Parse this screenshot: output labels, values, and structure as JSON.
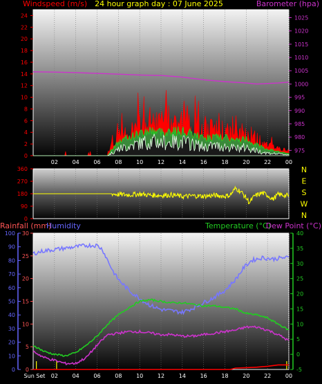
{
  "header": {
    "left_label": "Windspeed (m/s)",
    "title": "24 hour graph day : 07 June 2025",
    "right_label": "Barometer (hpa)"
  },
  "colors": {
    "wind": "#ff0000",
    "barometer": "#cc33cc",
    "title": "#ffff00",
    "gust": "#ff0000",
    "average": "#22cc22",
    "speed": "#e8ffe8",
    "direction": "#ffff00",
    "rain": "#ff0000",
    "humidity": "#7777ff",
    "temperature": "#22cc22",
    "dewpoint": "#cc33cc",
    "rain_axis": "#ff5555",
    "hum_axis": "#6666ff",
    "temp_axis": "#22cc22",
    "dew_axis": "#cc33cc"
  },
  "chart_data": [
    {
      "type": "line",
      "name": "wind-barometer",
      "x_ticks": [
        "02",
        "04",
        "06",
        "08",
        "10",
        "12",
        "14",
        "16",
        "18",
        "20",
        "22",
        "00"
      ],
      "left_axis": {
        "label": "Windspeed (m/s)",
        "ticks": [
          "0",
          "2",
          "4",
          "6",
          "8",
          "10",
          "12",
          "14",
          "16",
          "18",
          "20",
          "22",
          "24"
        ],
        "ylim": [
          0,
          25
        ]
      },
      "right_axis": {
        "label": "Barometer (hpa)",
        "ticks": [
          "975",
          "980",
          "985",
          "990",
          "995",
          "1000",
          "1005",
          "1010",
          "1015",
          "1020",
          "1025"
        ],
        "ylim": [
          973,
          1028
        ]
      },
      "barometer": [
        [
          0,
          1004.6
        ],
        [
          2,
          1004.5
        ],
        [
          4,
          1004.3
        ],
        [
          6,
          1004.0
        ],
        [
          8,
          1003.7
        ],
        [
          10,
          1003.4
        ],
        [
          12,
          1003.2
        ],
        [
          14,
          1002.6
        ],
        [
          16,
          1001.6
        ],
        [
          18,
          1000.9
        ],
        [
          20,
          1000.4
        ],
        [
          21,
          1000.0
        ],
        [
          22,
          1000.2
        ],
        [
          23,
          1000.4
        ],
        [
          24,
          1000.7
        ]
      ],
      "gust_envelope": [
        [
          0,
          0.8
        ],
        [
          6,
          0.8
        ],
        [
          7,
          1.2
        ],
        [
          7.5,
          3
        ],
        [
          8,
          4.5
        ],
        [
          9,
          6
        ],
        [
          10,
          7.5
        ],
        [
          11,
          8.5
        ],
        [
          12,
          8
        ],
        [
          13,
          8.5
        ],
        [
          14,
          8.5
        ],
        [
          15,
          7.5
        ],
        [
          16,
          6
        ],
        [
          17,
          6.5
        ],
        [
          18,
          6
        ],
        [
          19,
          5
        ],
        [
          20,
          6
        ],
        [
          21,
          4
        ],
        [
          22,
          2.5
        ],
        [
          23,
          1.8
        ],
        [
          24,
          1
        ]
      ],
      "avg_envelope": [
        [
          0,
          0
        ],
        [
          7,
          0
        ],
        [
          7.5,
          1.5
        ],
        [
          8,
          2.5
        ],
        [
          9,
          3.5
        ],
        [
          10,
          4.2
        ],
        [
          11,
          4.8
        ],
        [
          12,
          4.5
        ],
        [
          13,
          4.6
        ],
        [
          14,
          4.6
        ],
        [
          15,
          4
        ],
        [
          16,
          3.3
        ],
        [
          17,
          3.5
        ],
        [
          18,
          3.4
        ],
        [
          19,
          2.8
        ],
        [
          20,
          3.2
        ],
        [
          21,
          2
        ],
        [
          22,
          1.2
        ],
        [
          23,
          0.8
        ],
        [
          24,
          0.4
        ]
      ],
      "speed_envelope": [
        [
          0,
          0
        ],
        [
          7,
          0
        ],
        [
          7.5,
          0.8
        ],
        [
          8,
          1.5
        ],
        [
          9,
          2.2
        ],
        [
          10,
          2.8
        ],
        [
          11,
          3.3
        ],
        [
          12,
          3
        ],
        [
          13,
          3.1
        ],
        [
          14,
          3.1
        ],
        [
          15,
          2.6
        ],
        [
          16,
          2
        ],
        [
          17,
          2.2
        ],
        [
          18,
          2.1
        ],
        [
          19,
          1.6
        ],
        [
          20,
          1.9
        ],
        [
          21,
          1.1
        ],
        [
          22,
          0.6
        ],
        [
          23,
          0.4
        ],
        [
          24,
          0.2
        ]
      ]
    },
    {
      "type": "line",
      "name": "wind-direction",
      "left_axis": {
        "ticks": [
          "0",
          "90",
          "180",
          "270",
          "360"
        ],
        "ylim": [
          0,
          360
        ]
      },
      "compass": [
        "N",
        "W",
        "S",
        "E",
        "N"
      ],
      "direction": [
        [
          0,
          180
        ],
        [
          1,
          180
        ],
        [
          2,
          180
        ],
        [
          3,
          180
        ],
        [
          4,
          180
        ],
        [
          5,
          180
        ],
        [
          6,
          180
        ],
        [
          7,
          180
        ],
        [
          7.4,
          180
        ],
        [
          8,
          175
        ],
        [
          9,
          172
        ],
        [
          10,
          178
        ],
        [
          11,
          170
        ],
        [
          12,
          168
        ],
        [
          13,
          172
        ],
        [
          14,
          160
        ],
        [
          15,
          165
        ],
        [
          16,
          162
        ],
        [
          17,
          168
        ],
        [
          18,
          162
        ],
        [
          18.5,
          170
        ],
        [
          19,
          220
        ],
        [
          19.5,
          195
        ],
        [
          20,
          150
        ],
        [
          20.3,
          115
        ],
        [
          20.8,
          165
        ],
        [
          21.5,
          185
        ],
        [
          22,
          170
        ],
        [
          22.5,
          140
        ],
        [
          23,
          175
        ],
        [
          24,
          165
        ]
      ]
    },
    {
      "type": "line",
      "name": "rain-humidity-temperature",
      "header": {
        "rain_label": "Rainfall (mm)",
        "hum_label": "Humidity",
        "temp_label": "Temperature (°C)",
        "dew_label": "Dew Point (°C)"
      },
      "x_ticks": [
        "Sun Set",
        "02",
        "04",
        "06",
        "08",
        "10",
        "12",
        "14",
        "16",
        "18",
        "20",
        "22",
        "00"
      ],
      "humidity_axis": {
        "ticks": [
          "0",
          "10",
          "20",
          "30",
          "40",
          "50",
          "60",
          "70",
          "80",
          "90",
          "100"
        ],
        "ylim": [
          0,
          100
        ]
      },
      "rain_axis": {
        "ticks": [
          "0",
          "5",
          "10",
          "15",
          "20",
          "25",
          "30"
        ],
        "ylim": [
          0,
          30
        ]
      },
      "temp_axis": {
        "ticks": [
          "-5",
          "0",
          "5",
          "10",
          "15",
          "20",
          "25",
          "30",
          "35",
          "40"
        ],
        "ylim": [
          -5,
          40
        ]
      },
      "humidity": [
        [
          0,
          85
        ],
        [
          1,
          87
        ],
        [
          2,
          88
        ],
        [
          3,
          89
        ],
        [
          4,
          90
        ],
        [
          5,
          91
        ],
        [
          6,
          91
        ],
        [
          6.5,
          88
        ],
        [
          7,
          80
        ],
        [
          7.5,
          72
        ],
        [
          8,
          66
        ],
        [
          9,
          58
        ],
        [
          10,
          52
        ],
        [
          11,
          47
        ],
        [
          12,
          44
        ],
        [
          13,
          43
        ],
        [
          14,
          42
        ],
        [
          15,
          45
        ],
        [
          16,
          49
        ],
        [
          17,
          53
        ],
        [
          18,
          58
        ],
        [
          19,
          66
        ],
        [
          19.8,
          75
        ],
        [
          20.5,
          80
        ],
        [
          21.5,
          82
        ],
        [
          22.5,
          81
        ],
        [
          23.5,
          82
        ],
        [
          24,
          82
        ]
      ],
      "temperature": [
        [
          0,
          3
        ],
        [
          1,
          1
        ],
        [
          2,
          0
        ],
        [
          3,
          -0.5
        ],
        [
          4,
          0.5
        ],
        [
          5,
          3
        ],
        [
          6,
          6
        ],
        [
          7,
          10
        ],
        [
          8,
          13
        ],
        [
          9,
          15.5
        ],
        [
          10,
          17.5
        ],
        [
          11,
          18
        ],
        [
          12,
          17.5
        ],
        [
          13,
          17
        ],
        [
          14,
          17
        ],
        [
          15,
          16.5
        ],
        [
          16,
          16
        ],
        [
          17,
          16
        ],
        [
          18,
          15.5
        ],
        [
          19,
          15
        ],
        [
          20,
          13.5
        ],
        [
          21,
          13
        ],
        [
          22,
          12
        ],
        [
          23,
          10
        ],
        [
          24,
          8
        ]
      ],
      "dewpoint": [
        [
          0,
          1
        ],
        [
          1,
          -1
        ],
        [
          2,
          -2
        ],
        [
          3,
          -3
        ],
        [
          4,
          -3
        ],
        [
          5,
          -1
        ],
        [
          6,
          3
        ],
        [
          7,
          6.5
        ],
        [
          8,
          7
        ],
        [
          9,
          7.5
        ],
        [
          10,
          7.5
        ],
        [
          11,
          7
        ],
        [
          12,
          6.5
        ],
        [
          13,
          6.5
        ],
        [
          14,
          6
        ],
        [
          15,
          6
        ],
        [
          16,
          6.5
        ],
        [
          17,
          7
        ],
        [
          18,
          7.5
        ],
        [
          19,
          8
        ],
        [
          20,
          9
        ],
        [
          21,
          9
        ],
        [
          22,
          8
        ],
        [
          23,
          6.5
        ],
        [
          24,
          4.5
        ]
      ],
      "rainfall": [
        [
          0,
          0
        ],
        [
          18.5,
          0
        ],
        [
          19,
          0.3
        ],
        [
          20,
          0.4
        ],
        [
          21,
          0.5
        ],
        [
          22,
          0.7
        ],
        [
          23,
          1.0
        ],
        [
          24,
          1.0
        ]
      ]
    }
  ]
}
